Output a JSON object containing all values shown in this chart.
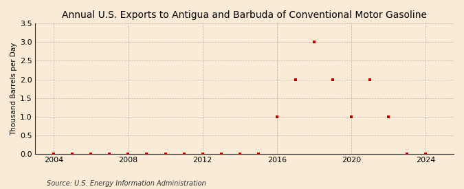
{
  "title": "Annual U.S. Exports to Antigua and Barbuda of Conventional Motor Gasoline",
  "ylabel": "Thousand Barrels per Day",
  "source": "Source: U.S. Energy Information Administration",
  "background_color": "#faebd7",
  "plot_background_color": "#faebd7",
  "grid_color": "#999999",
  "years": [
    2004,
    2005,
    2006,
    2007,
    2008,
    2009,
    2010,
    2011,
    2012,
    2013,
    2014,
    2015,
    2016,
    2017,
    2018,
    2019,
    2020,
    2021,
    2022,
    2023,
    2024
  ],
  "values": [
    0.0,
    0.0,
    0.0,
    0.0,
    0.0,
    0.0,
    0.0,
    0.0,
    0.0,
    0.0,
    0.0,
    0.0,
    1.0,
    2.0,
    3.0,
    2.0,
    1.0,
    2.0,
    1.0,
    0.0,
    0.0
  ],
  "xlim": [
    2003.0,
    2025.5
  ],
  "ylim": [
    0.0,
    3.5
  ],
  "yticks": [
    0.0,
    0.5,
    1.0,
    1.5,
    2.0,
    2.5,
    3.0,
    3.5
  ],
  "xticks": [
    2004,
    2008,
    2012,
    2016,
    2020,
    2024
  ],
  "vgrid_years": [
    2004,
    2008,
    2012,
    2016,
    2020,
    2024
  ],
  "hgrid_vals": [
    0.0,
    0.5,
    1.0,
    1.5,
    2.0,
    2.5,
    3.0,
    3.5
  ],
  "marker_color": "#bb0000",
  "marker_size": 3.5,
  "title_fontsize": 10,
  "axis_fontsize": 8,
  "source_fontsize": 7,
  "ylabel_fontsize": 7.5
}
